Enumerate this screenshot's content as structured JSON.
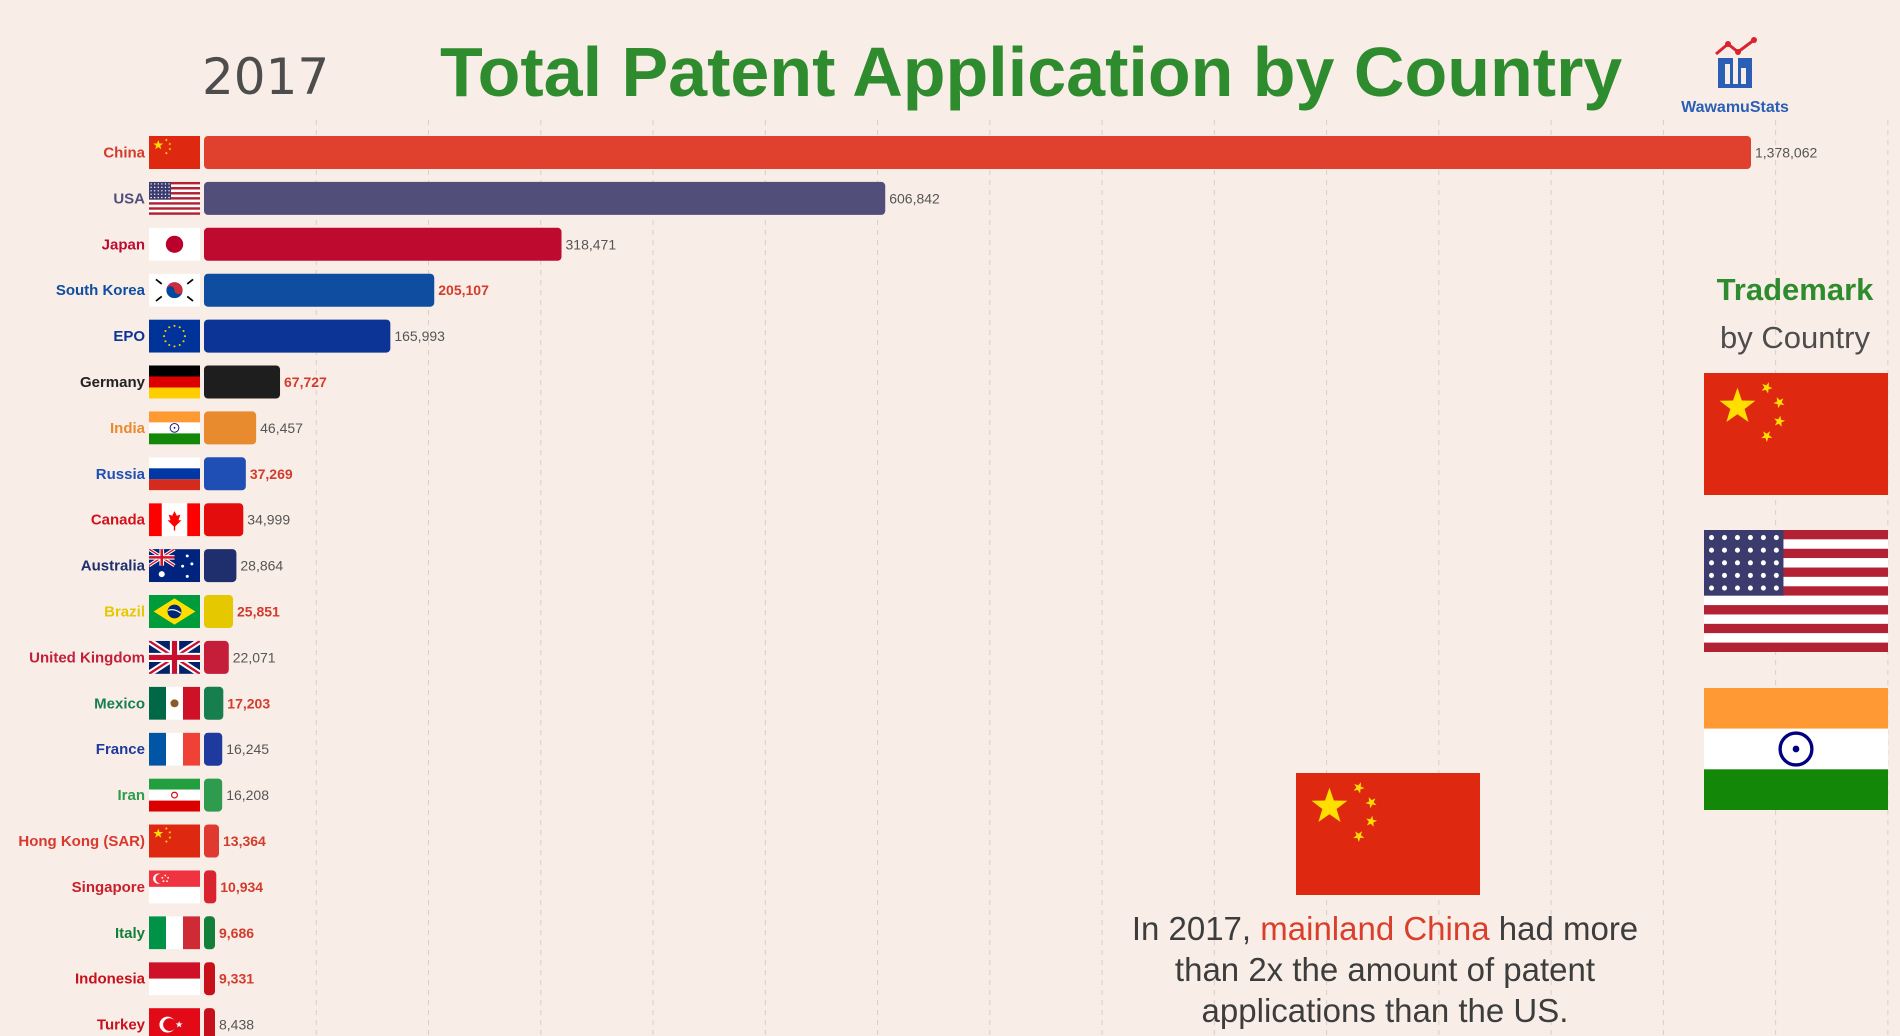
{
  "header": {
    "year": "2017",
    "title": "Total Patent Application by Country",
    "logo_text": "WawamuStats"
  },
  "chart_data": {
    "type": "bar",
    "orientation": "horizontal",
    "title": "Total Patent Application by Country",
    "grid": true,
    "xlim": [
      0,
      1500000
    ],
    "categories": [
      "China",
      "USA",
      "Japan",
      "South Korea",
      "EPO",
      "Germany",
      "India",
      "Russia",
      "Canada",
      "Australia",
      "Brazil",
      "United Kingdom",
      "Mexico",
      "France",
      "Iran",
      "Hong Kong (SAR)",
      "Singapore",
      "Italy",
      "Indonesia",
      "Turkey"
    ],
    "values": [
      1378062,
      606842,
      318471,
      205107,
      165993,
      67727,
      46457,
      37269,
      34999,
      28864,
      25851,
      22071,
      17203,
      16245,
      16208,
      13364,
      10934,
      9686,
      9331,
      8438
    ],
    "value_labels": [
      "1,378,062",
      "606,842",
      "318,471",
      "205,107",
      "165,993",
      "67,727",
      "46,457",
      "37,269",
      "34,999",
      "28,864",
      "25,851",
      "22,071",
      "17,203",
      "16,245",
      "16,208",
      "13,364",
      "10,934",
      "9,686",
      "9,331",
      "8,438"
    ],
    "bar_colors": [
      "#e0412f",
      "#514e7a",
      "#bf0a30",
      "#0f4da0",
      "#0c3496",
      "#1e1e1e",
      "#e88a2e",
      "#1f4fb5",
      "#e40d0d",
      "#1f2f6e",
      "#e5c800",
      "#c41e3a",
      "#177e4e",
      "#1f3a9e",
      "#2e9b4e",
      "#e03a30",
      "#d9232e",
      "#127f3a",
      "#c7101a",
      "#c8101c"
    ],
    "label_colors": [
      "#d33b2c",
      "#514e7a",
      "#bf0a30",
      "#0f4da0",
      "#0c3496",
      "#222222",
      "#e88a2e",
      "#1f4fb5",
      "#d4111b",
      "#1f2f6e",
      "#e5c800",
      "#c41e3a",
      "#177e4e",
      "#1f3a9e",
      "#2e9b4e",
      "#d9382e",
      "#c91f2c",
      "#127f3a",
      "#c7101a",
      "#c8101c"
    ],
    "value_label_colors": [
      "#555555",
      "#555555",
      "#555555",
      "#d33b2c",
      "#555555",
      "#d33b2c",
      "#555555",
      "#d33b2c",
      "#555555",
      "#555555",
      "#d33b2c",
      "#555555",
      "#d33b2c",
      "#555555",
      "#555555",
      "#d33b2c",
      "#d33b2c",
      "#d33b2c",
      "#d33b2c",
      "#555555"
    ],
    "flags": [
      "cn",
      "us",
      "jp",
      "kr",
      "eu",
      "de",
      "in",
      "ru",
      "ca",
      "au",
      "br",
      "gb",
      "mx",
      "fr",
      "ir",
      "hk",
      "sg",
      "it",
      "id",
      "tr"
    ]
  },
  "sidebar": {
    "title_line1": "Trademark",
    "title_line2": "by Country",
    "flags": [
      "cn",
      "us",
      "in"
    ]
  },
  "annotation": {
    "flag": "cn",
    "text_before": "In 2017, ",
    "highlight": "mainland China",
    "text_after": " had more than 2x the amount of patent applications than the US."
  }
}
